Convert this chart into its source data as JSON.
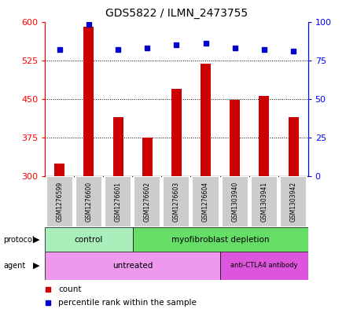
{
  "title": "GDS5822 / ILMN_2473755",
  "samples": [
    "GSM1276599",
    "GSM1276600",
    "GSM1276601",
    "GSM1276602",
    "GSM1276603",
    "GSM1276604",
    "GSM1303940",
    "GSM1303941",
    "GSM1303942"
  ],
  "counts": [
    325,
    590,
    415,
    375,
    470,
    518,
    448,
    456,
    415
  ],
  "percentiles": [
    82,
    98,
    82,
    83,
    85,
    86,
    83,
    82,
    81
  ],
  "y_min": 300,
  "y_max": 600,
  "y_ticks": [
    300,
    375,
    450,
    525,
    600
  ],
  "y2_ticks": [
    0,
    25,
    50,
    75,
    100
  ],
  "bar_color": "#cc0000",
  "dot_color": "#0000cc",
  "protocol_control_n": 3,
  "protocol_myo_n": 6,
  "agent_untreated_n": 6,
  "agent_anti_n": 3,
  "color_control": "#aaeebb",
  "color_myo": "#66dd66",
  "color_untreated": "#ee99ee",
  "color_anti": "#dd55dd",
  "color_bg": "#cccccc"
}
